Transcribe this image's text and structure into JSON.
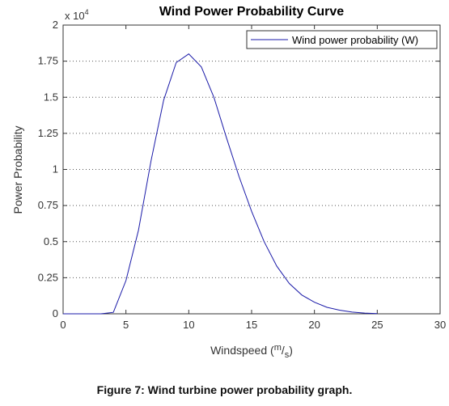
{
  "chart_data": {
    "type": "line",
    "title": "Wind Power Probability Curve",
    "xlabel": "Windspeed",
    "xlabel_unit": {
      "num": "m",
      "den": "s"
    },
    "ylabel": "Power Probability",
    "y_multiplier": "x 10",
    "y_multiplier_exp": "4",
    "xlim": [
      0,
      30
    ],
    "ylim": [
      0,
      2
    ],
    "xticks": [
      0,
      5,
      10,
      15,
      20,
      25,
      30
    ],
    "yticks": [
      0,
      0.25,
      0.5,
      0.75,
      1,
      1.25,
      1.5,
      1.75,
      2
    ],
    "ytick_labels": [
      "0",
      "0.25",
      "0.5",
      "0.75",
      "1",
      "1.25",
      "1.5",
      "1.75",
      "2"
    ],
    "grid": true,
    "legend": "top-right",
    "series": [
      {
        "name": "Wind power probability (W)",
        "color": "#1a1aa8",
        "x": [
          0,
          1,
          2,
          3,
          4,
          5,
          6,
          7,
          8,
          9,
          10,
          11,
          12,
          13,
          14,
          15,
          16,
          17,
          18,
          19,
          20,
          21,
          22,
          23,
          24,
          25
        ],
        "y": [
          0,
          0,
          0,
          0,
          0.01,
          0.23,
          0.58,
          1.06,
          1.48,
          1.74,
          1.8,
          1.71,
          1.5,
          1.22,
          0.95,
          0.71,
          0.5,
          0.33,
          0.21,
          0.13,
          0.08,
          0.045,
          0.025,
          0.012,
          0.005,
          0.001
        ]
      }
    ]
  },
  "caption": "Figure 7: Wind turbine power probability graph."
}
